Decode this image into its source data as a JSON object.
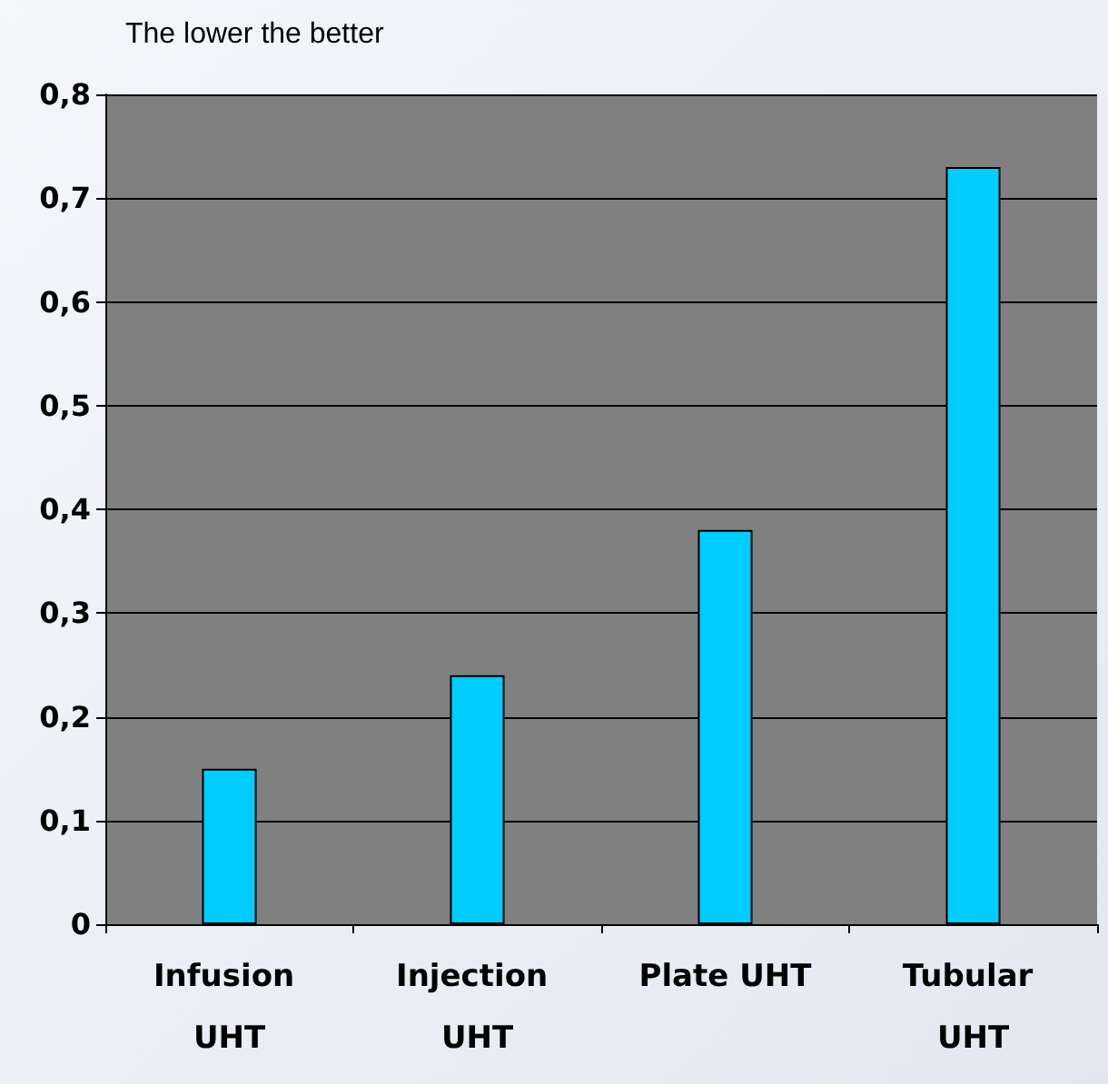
{
  "chart_data": {
    "type": "bar",
    "title": "The lower the better",
    "categories": [
      "Infusion UHT",
      "Injection UHT",
      "Plate UHT",
      "Tubular UHT"
    ],
    "values": [
      0.15,
      0.24,
      0.38,
      0.73
    ],
    "color": "#00ccff",
    "ylim": [
      0,
      0.8
    ],
    "yticks": [
      {
        "value": 0,
        "label": "0"
      },
      {
        "value": 0.1,
        "label": "0,1"
      },
      {
        "value": 0.2,
        "label": "0,2"
      },
      {
        "value": 0.3,
        "label": "0,3"
      },
      {
        "value": 0.4,
        "label": "0,4"
      },
      {
        "value": 0.5,
        "label": "0,5"
      },
      {
        "value": 0.6,
        "label": "0,6"
      },
      {
        "value": 0.7,
        "label": "0,7"
      },
      {
        "value": 0.8,
        "label": "0,8"
      }
    ],
    "grid": "y"
  }
}
